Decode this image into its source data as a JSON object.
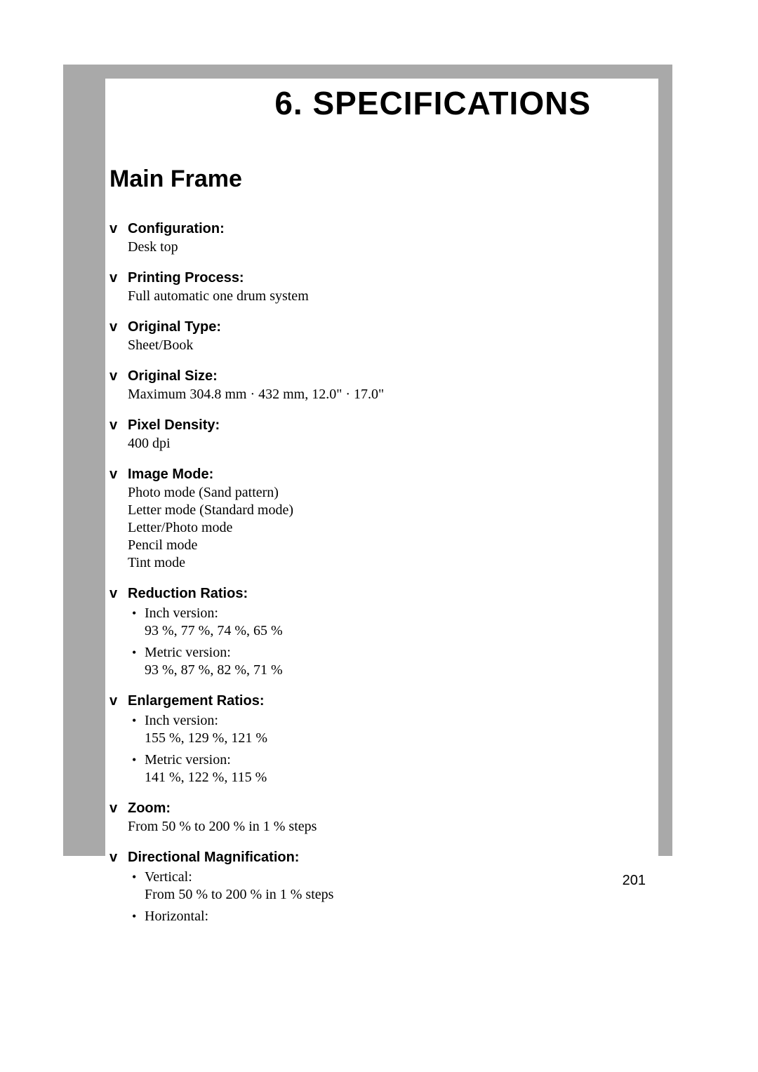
{
  "colors": {
    "grey_band": "#a9a9a9",
    "background": "#ffffff",
    "text": "#000000"
  },
  "chapter_title": "6. SPECIFICATIONS",
  "section_title": "Main Frame",
  "bullet_glyph": "v",
  "sub_bullet_glyph": "•",
  "page_number": "201",
  "specs": [
    {
      "label": "Configuration:",
      "lines": [
        "Desk top"
      ],
      "sub": []
    },
    {
      "label": "Printing Process:",
      "lines": [
        "Full automatic one drum system"
      ],
      "sub": []
    },
    {
      "label": "Original Type:",
      "lines": [
        "Sheet/Book"
      ],
      "sub": []
    },
    {
      "label": "Original Size:",
      "lines": [
        "Maximum 304.8 mm ·  432 mm, 12.0\" ·  17.0\""
      ],
      "sub": []
    },
    {
      "label": "Pixel Density:",
      "lines": [
        "400 dpi"
      ],
      "sub": []
    },
    {
      "label": "Image Mode:",
      "lines": [
        "Photo mode (Sand pattern)",
        "Letter mode (Standard mode)",
        "Letter/Photo mode",
        "Pencil mode",
        "Tint mode"
      ],
      "sub": []
    },
    {
      "label": "Reduction Ratios:",
      "lines": [],
      "sub": [
        {
          "title": "Inch version:",
          "detail": "93 %, 77 %, 74 %, 65 %"
        },
        {
          "title": "Metric version:",
          "detail": "93 %, 87 %, 82 %, 71 %"
        }
      ]
    },
    {
      "label": "Enlargement Ratios:",
      "lines": [],
      "sub": [
        {
          "title": "Inch version:",
          "detail": "155 %, 129 %, 121 %"
        },
        {
          "title": "Metric version:",
          "detail": "141 %, 122 %, 115 %"
        }
      ]
    },
    {
      "label": "Zoom:",
      "lines": [
        "From 50 % to 200 % in 1 % steps"
      ],
      "sub": []
    },
    {
      "label": "Directional Magnification:",
      "lines": [],
      "sub": [
        {
          "title": "Vertical:",
          "detail": "From 50 % to 200 % in 1 % steps"
        },
        {
          "title": "Horizontal:",
          "detail": ""
        }
      ]
    }
  ]
}
